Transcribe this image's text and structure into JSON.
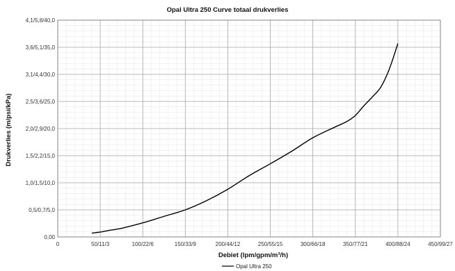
{
  "chart_data": {
    "type": "line",
    "title": "Opal Ultra 250 Curve totaal drukverlies",
    "xlabel": "Debiet (lpm/gpm/m³/h)",
    "ylabel": "Drukverlies (m/psi/kPa)",
    "xlim": [
      0,
      450
    ],
    "ylim": [
      0,
      4.1
    ],
    "x_ticks": [
      0,
      50,
      100,
      150,
      200,
      250,
      300,
      350,
      400,
      450
    ],
    "x_tick_labels": [
      "0",
      "50/11/3",
      "100/22/6",
      "150/33/9",
      "200/44/12",
      "250/55/15",
      "300/66/18",
      "350/77/21",
      "400/88/24",
      "450/99/27"
    ],
    "y_ticks": [
      0,
      0.5,
      1.0,
      1.5,
      2.0,
      2.5,
      3.1,
      3.6,
      4.1
    ],
    "y_tick_labels": [
      "0,00",
      "0,5/0,7/5,0",
      "1,0/1,5/10,0",
      "1,5/2,2/15,0",
      "2,0/2,9/20,0",
      "2,5/3,6/25,0",
      "3,1/4,4/30,0",
      "3,6/5,1/35,0",
      "4,1/5,8/40,0"
    ],
    "grid": true,
    "legend_position": "bottom",
    "series": [
      {
        "name": "Opal Ultra 250",
        "color": "#000000",
        "x": [
          40,
          50,
          60,
          75,
          100,
          125,
          150,
          175,
          200,
          225,
          250,
          275,
          300,
          325,
          340,
          350,
          360,
          370,
          380,
          390,
          400
        ],
        "y": [
          0.07,
          0.09,
          0.12,
          0.16,
          0.26,
          0.38,
          0.5,
          0.67,
          0.88,
          1.13,
          1.35,
          1.58,
          1.83,
          2.02,
          2.13,
          2.24,
          2.42,
          2.6,
          2.82,
          3.2,
          3.67
        ]
      }
    ]
  }
}
